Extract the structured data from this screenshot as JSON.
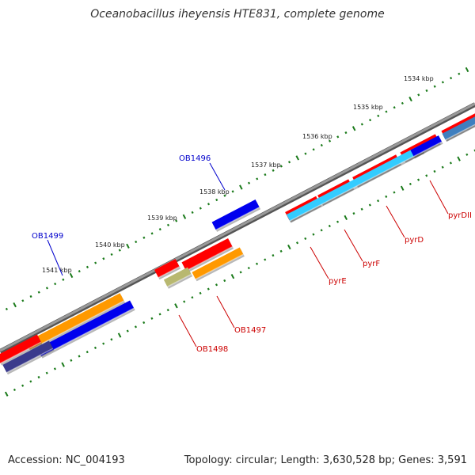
{
  "title": "Oceanobacillus iheyensis HTE831, complete genome",
  "footer": {
    "accession_label": "Accession:",
    "accession": "NC_004193",
    "topology_label": "Topology:",
    "topology": "circular",
    "length_label": "Length:",
    "length": "3,630,528 bp",
    "genes_label": "Genes:",
    "genes": "3,591"
  },
  "colors": {
    "backbone": "#808080",
    "tick": "#1a7a1a",
    "red": "#ff0000",
    "orange": "#ff9900",
    "blue": "#0000ee",
    "navy": "#3a3a8c",
    "cyan": "#33ccff",
    "steel": "#3f7fbf",
    "khaki": "#b8b870",
    "label_blue": "#0000cc",
    "label_red": "#cc0000"
  },
  "scale": {
    "unit": "kbp",
    "labels": [
      "1534 kbp",
      "1535 kbp",
      "1536 kbp",
      "1537 kbp",
      "1538 kbp",
      "1539 kbp",
      "1540 kbp",
      "1541 kbp"
    ]
  },
  "gene_labels": [
    {
      "name": "OB1496",
      "color": "label_blue"
    },
    {
      "name": "OB1499",
      "color": "label_blue"
    },
    {
      "name": "pyrDII",
      "color": "label_red"
    },
    {
      "name": "pyrD",
      "color": "label_red"
    },
    {
      "name": "pyrF",
      "color": "label_red"
    },
    {
      "name": "pyrE",
      "color": "label_red"
    },
    {
      "name": "OB1497",
      "color": "label_red"
    },
    {
      "name": "OB1498",
      "color": "label_red"
    }
  ]
}
